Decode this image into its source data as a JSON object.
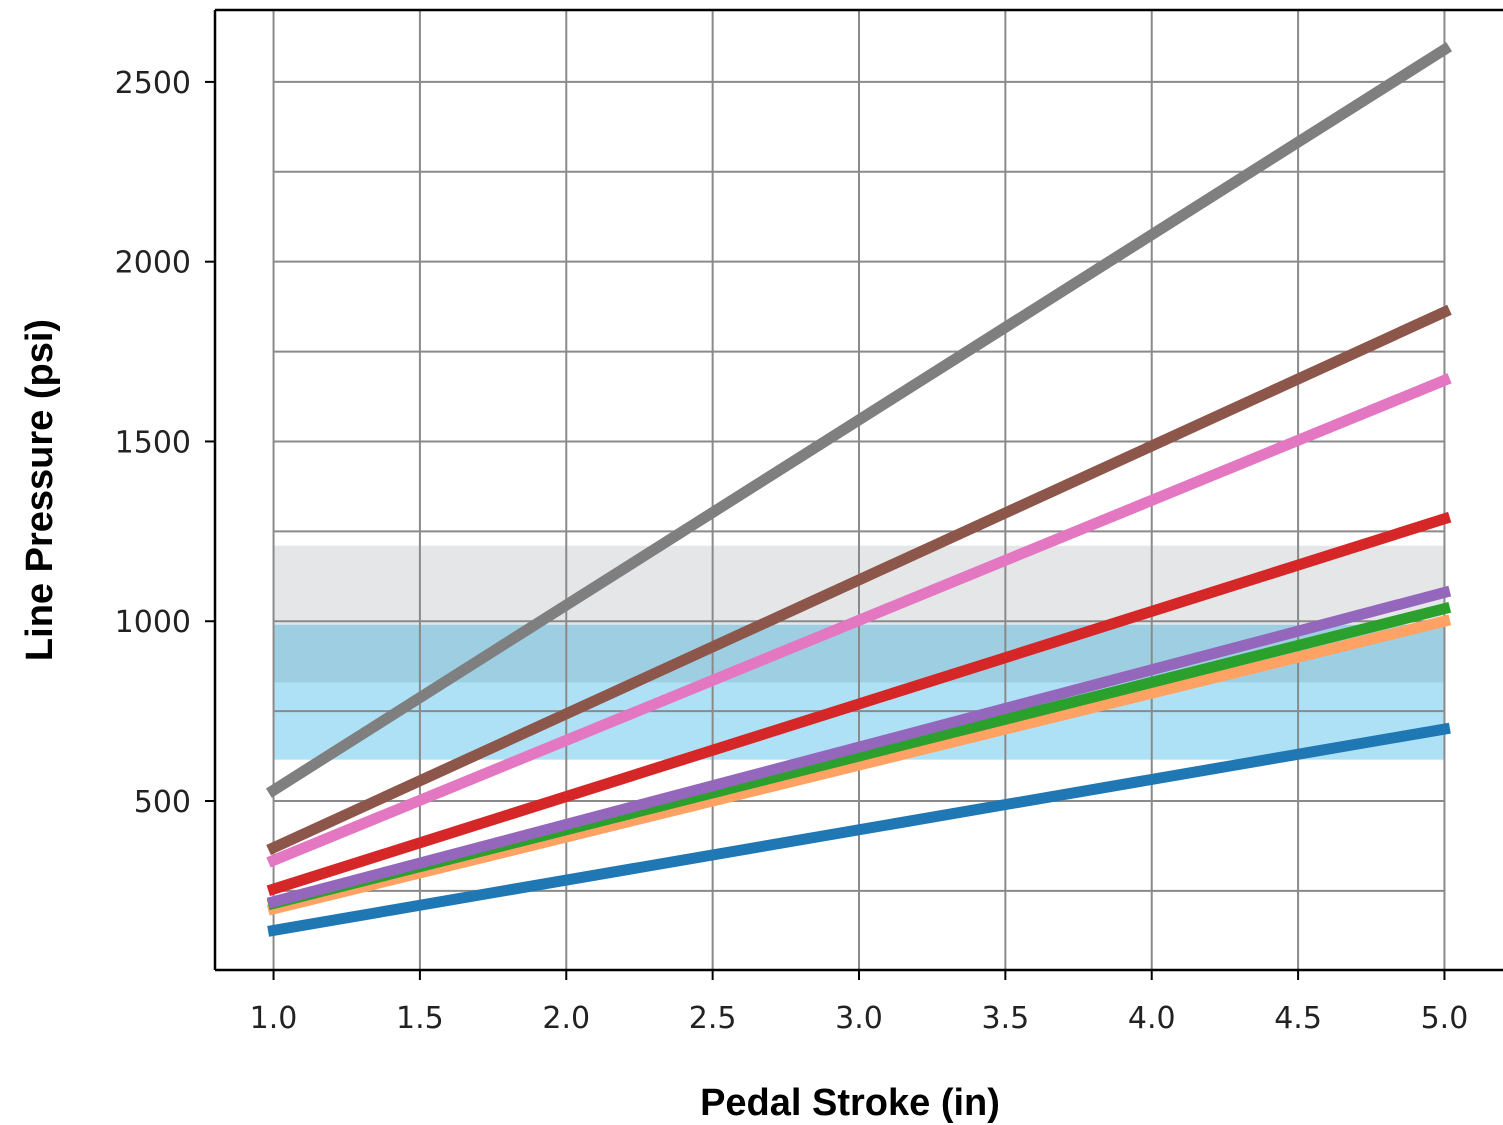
{
  "chart_data": {
    "type": "line",
    "xlabel": "Pedal Stroke (in)",
    "ylabel": "Line Pressure (psi)",
    "xlim": [
      0.8,
      5.2
    ],
    "ylim": [
      30,
      2700
    ],
    "x_ticks": [
      1.0,
      1.5,
      2.0,
      2.5,
      3.0,
      3.5,
      4.0,
      4.5,
      5.0
    ],
    "x_tick_labels": [
      "1.0",
      "1.5",
      "2.0",
      "2.5",
      "3.0",
      "3.5",
      "4.0",
      "4.5",
      "5.0"
    ],
    "y_ticks": [
      500,
      1000,
      1500,
      2000,
      2500
    ],
    "y_tick_labels": [
      "500",
      "1000",
      "1500",
      "2000",
      "2500"
    ],
    "y_minor_grid": [
      250,
      750,
      1250,
      1750,
      2250
    ],
    "grid": true,
    "legend": "none",
    "bands": [
      {
        "y0": 830,
        "y1": 1210,
        "color": "#e5e6e8"
      },
      {
        "y0": 615,
        "y1": 990,
        "color": "#aee1f5"
      },
      {
        "y0": 830,
        "y1": 990,
        "color": "#9ecee2"
      }
    ],
    "series": [
      {
        "x": [
          1.0,
          5.0
        ],
        "values": [
          140,
          700
        ],
        "color": "#1f77b4"
      },
      {
        "x": [
          1.0,
          5.0
        ],
        "values": [
          200,
          1000
        ],
        "color": "#ffa263"
      },
      {
        "x": [
          1.0,
          5.0
        ],
        "values": [
          215,
          1035
        ],
        "color": "#2ca02c"
      },
      {
        "x": [
          1.0,
          5.0
        ],
        "values": [
          220,
          1080
        ],
        "color": "#9467bd"
      },
      {
        "x": [
          1.0,
          5.0
        ],
        "values": [
          255,
          1285
        ],
        "color": "#d62728"
      },
      {
        "x": [
          1.0,
          5.0
        ],
        "values": [
          335,
          1670
        ],
        "color": "#e377c2"
      },
      {
        "x": [
          1.0,
          5.0
        ],
        "values": [
          370,
          1860
        ],
        "color": "#8c564b"
      },
      {
        "x": [
          1.0,
          5.0
        ],
        "values": [
          530,
          2590
        ],
        "color": "#7f7f7f"
      }
    ]
  }
}
